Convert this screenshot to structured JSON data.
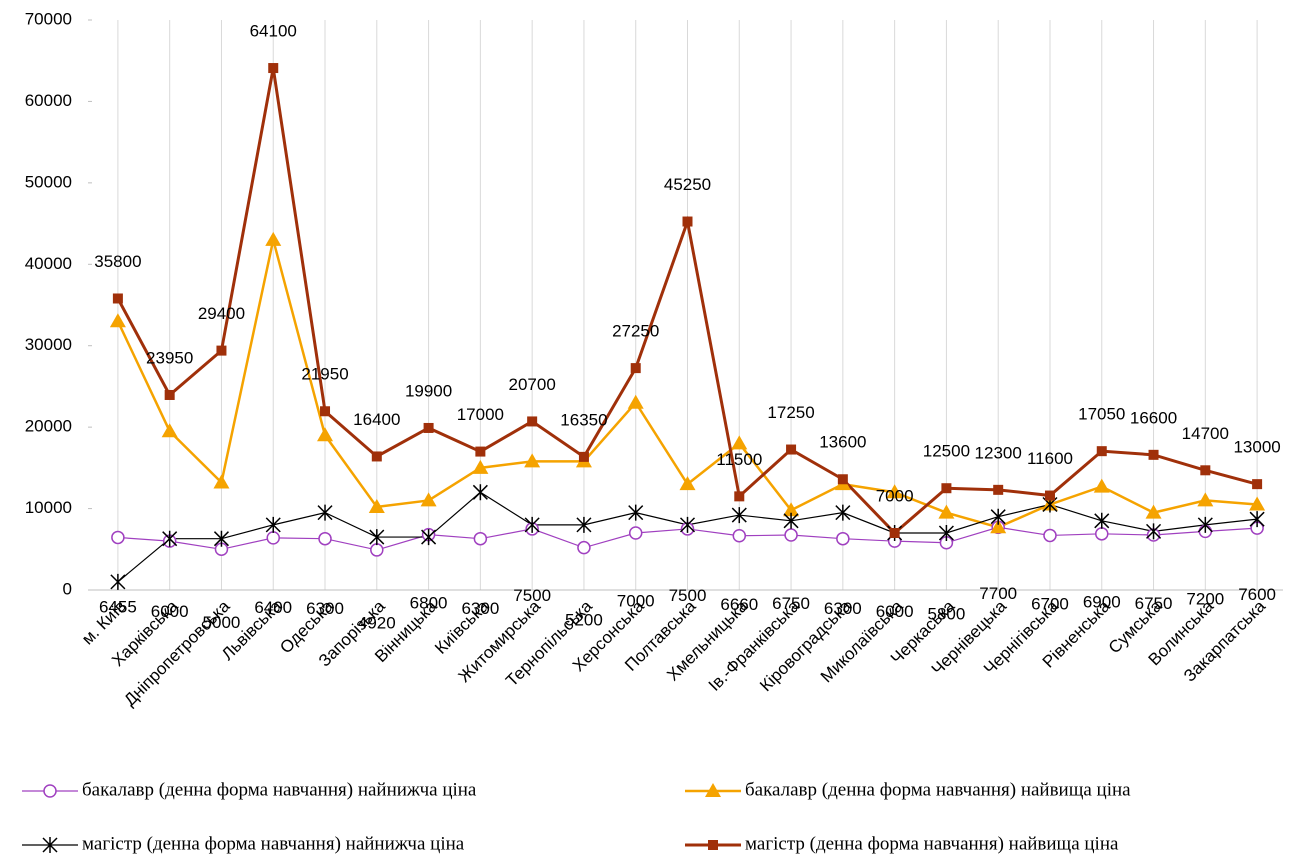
{
  "chart_data": {
    "type": "line",
    "categories": [
      "м. Київ",
      "Харківська",
      "Дніпропетровська",
      "Львівська",
      "Одеська",
      "Запорізька",
      "Вінницька",
      "Київська",
      "Житомирська",
      "Тернопільська",
      "Херсонська",
      "Полтавська",
      "Хмельницька",
      "Ів.-Франківська",
      "Кіровоградська",
      "Миколаївська",
      "Черкаська",
      "Чернівецька",
      "Чернігівська",
      "Рівненська",
      "Сумська",
      "Волинська",
      "Закарпатська"
    ],
    "series": [
      {
        "name": "бакалавр (денна форма навчання) найнижча ціна",
        "color": "#a040c0",
        "marker": "circle",
        "labels": "below",
        "values": [
          6455,
          6000,
          5000,
          6400,
          6300,
          4920,
          6800,
          6300,
          7500,
          5200,
          7000,
          7500,
          6660,
          6750,
          6300,
          6000,
          5800,
          7700,
          6700,
          6900,
          6750,
          7200,
          7600
        ]
      },
      {
        "name": "бакалавр (денна форма навчання) найвища ціна",
        "color": "#f5a300",
        "marker": "triangle",
        "values": [
          33000,
          19500,
          13200,
          43000,
          19000,
          10200,
          11000,
          15000,
          15800,
          15800,
          23000,
          13000,
          18000,
          9800,
          13000,
          12000,
          9500,
          7700,
          10500,
          12700,
          9500,
          11000,
          10500
        ]
      },
      {
        "name": "магістр (денна форма навчання) найнижча ціна",
        "color": "#000000",
        "marker": "star",
        "values": [
          1000,
          6300,
          6300,
          8000,
          9500,
          6500,
          6500,
          12000,
          8000,
          8000,
          9500,
          8000,
          9200,
          8500,
          9500,
          7000,
          7000,
          9000,
          10500,
          8500,
          7200,
          8000,
          8700
        ]
      },
      {
        "name": "магістр (денна форма навчання) найвища ціна",
        "color": "#a0300a",
        "marker": "square",
        "labels": "above",
        "values": [
          35800,
          23950,
          29400,
          64100,
          21950,
          16400,
          19900,
          17000,
          20700,
          16350,
          27250,
          45250,
          11500,
          17250,
          13600,
          7000,
          12500,
          12300,
          11600,
          17050,
          16600,
          14700,
          13000
        ]
      }
    ],
    "ylim": [
      0,
      70000
    ],
    "yticks": [
      0,
      10000,
      20000,
      30000,
      40000,
      50000,
      60000,
      70000
    ],
    "grid": true
  }
}
